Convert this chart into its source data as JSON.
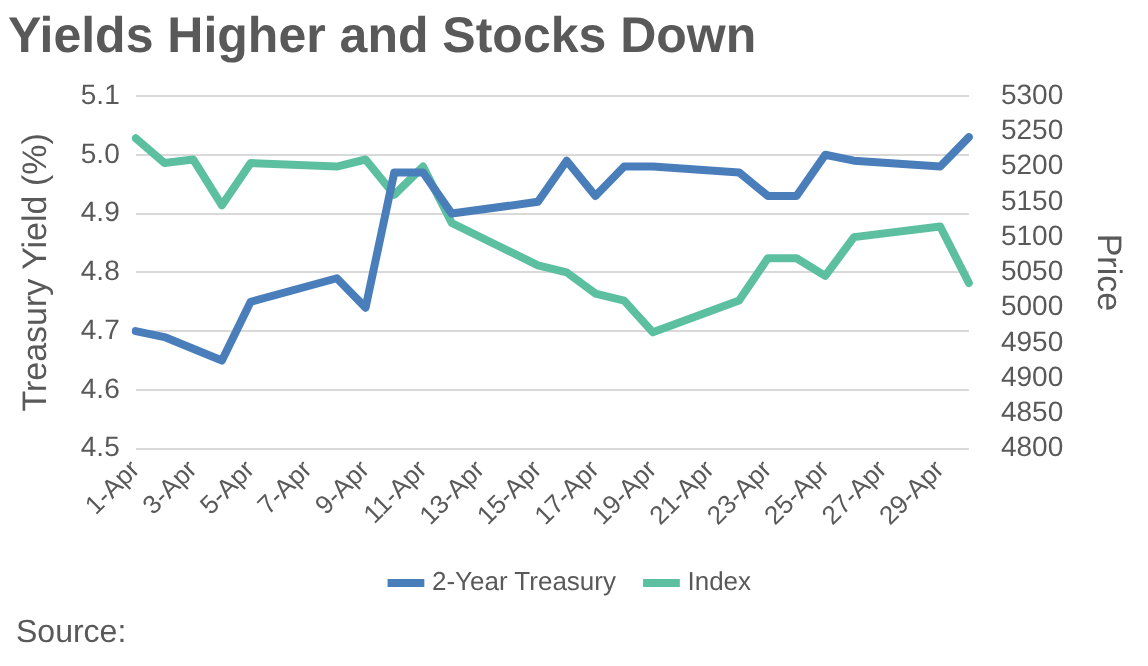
{
  "chart_data": {
    "type": "line",
    "title": "Yields Higher and Stocks Down",
    "ylabel": "Treasury Yield (%)",
    "y2label": "Price",
    "categories": [
      "1-Apr",
      null,
      "3-Apr",
      null,
      "5-Apr",
      null,
      "7-Apr",
      null,
      "9-Apr",
      null,
      "11-Apr",
      null,
      "13-Apr",
      null,
      "15-Apr",
      null,
      "17-Apr",
      null,
      "19-Apr",
      null,
      "21-Apr",
      null,
      "23-Apr",
      null,
      "25-Apr",
      null,
      "27-Apr",
      null,
      "29-Apr",
      null
    ],
    "series": [
      {
        "name": "2-Year Treasury",
        "color": "#4a7ebb",
        "values": [
          4.7,
          4.69,
          4.67,
          4.65,
          4.75,
          null,
          null,
          4.79,
          4.74,
          4.97,
          4.97,
          4.9,
          null,
          null,
          4.92,
          4.99,
          4.93,
          4.98,
          4.98,
          null,
          null,
          4.97,
          4.93,
          4.93,
          5.0,
          4.99,
          null,
          null,
          4.98,
          5.03
        ]
      },
      {
        "name": "Index",
        "color": "#5cc0a0",
        "axis": "y2",
        "values": [
          5240,
          5205,
          5210,
          5145,
          5205,
          null,
          null,
          5200,
          5210,
          5160,
          5200,
          5120,
          null,
          null,
          5060,
          5050,
          5020,
          5010,
          4965,
          null,
          null,
          5010,
          5070,
          5070,
          5045,
          5100,
          null,
          null,
          5115,
          5035
        ]
      }
    ],
    "ylim": [
      4.5,
      5.1
    ],
    "yticks": [
      {
        "value": 4.5,
        "label": "4.5"
      },
      {
        "value": 4.6,
        "label": "4.6"
      },
      {
        "value": 4.7,
        "label": "4.7"
      },
      {
        "value": 4.8,
        "label": "4.8"
      },
      {
        "value": 4.9,
        "label": "4.9"
      },
      {
        "value": 5.0,
        "label": "5.0"
      },
      {
        "value": 5.1,
        "label": "5.1"
      }
    ],
    "y2lim": [
      4800,
      5300
    ],
    "y2ticks": [
      4800,
      4850,
      4900,
      4950,
      5000,
      5050,
      5100,
      5150,
      5200,
      5250,
      5300
    ],
    "grid": "y",
    "legend": "bottom",
    "marker": "none",
    "line_style": "solid",
    "annotations": [
      "Source:"
    ]
  }
}
